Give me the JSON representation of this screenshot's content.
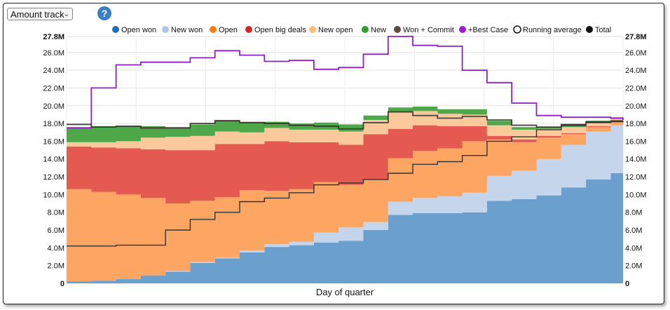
{
  "controls": {
    "metric_select": "Amount track",
    "help_label": "?"
  },
  "colors": {
    "open_won": "#6b9fce",
    "new_won": "#c5d5ec",
    "open": "#fda664",
    "open_big_deals": "#e55a50",
    "new_open": "#fcc99c",
    "new": "#4ea84a",
    "won_commit": "#5b4a45",
    "best_case": "#8e1fc4",
    "running_average": "#333333",
    "total": "#111111",
    "legend_open_won": "#1f6fb2",
    "legend_new_won": "#aec7e8",
    "legend_open": "#ff7f0e",
    "legend_open_big_deals": "#d62728",
    "legend_new_open": "#ffbb78",
    "legend_new": "#2ca02c",
    "legend_won_commit": "#5b4a45",
    "legend_best_case": "#9b1fd0"
  },
  "chart_data": {
    "type": "area",
    "title": "",
    "xlabel": "Day of quarter",
    "ylabel": "",
    "ylim": [
      0,
      27800000
    ],
    "y_tick_labels": [
      "0",
      "2.0M",
      "4.0M",
      "6.0M",
      "8.0M",
      "10.0M",
      "12.0M",
      "14.0M",
      "16.0M",
      "18.0M",
      "20.0M",
      "22.0M",
      "24.0M",
      "26.0M",
      "27.8M"
    ],
    "y_tick_values": [
      0,
      2000000,
      4000000,
      6000000,
      8000000,
      10000000,
      12000000,
      14000000,
      16000000,
      18000000,
      20000000,
      22000000,
      24000000,
      26000000,
      27800000
    ],
    "x": [
      1,
      5,
      9,
      13,
      17,
      21,
      25,
      29,
      33,
      37,
      41,
      45,
      49,
      53,
      57,
      61,
      65,
      69,
      73,
      77,
      81,
      85,
      89,
      91
    ],
    "legend": [
      "Open won",
      "New won",
      "Open",
      "Open big deals",
      "New open",
      "New",
      "Won + Commit",
      "+Best Case",
      "Running average",
      "Total"
    ],
    "stacked_series": [
      {
        "name": "Open won",
        "values": [
          0.2,
          0.3,
          0.5,
          0.9,
          1.3,
          2.3,
          2.8,
          3.5,
          4.1,
          4.3,
          4.6,
          4.8,
          6.0,
          7.7,
          7.9,
          7.9,
          8.0,
          9.3,
          9.5,
          9.9,
          10.8,
          11.7,
          12.4,
          14.0
        ]
      },
      {
        "name": "New won",
        "values": [
          0.0,
          0.0,
          0.0,
          0.0,
          0.1,
          0.1,
          0.1,
          0.2,
          0.3,
          0.4,
          1.1,
          1.5,
          0.9,
          1.5,
          1.7,
          1.9,
          2.2,
          2.8,
          3.2,
          4.1,
          4.8,
          5.4,
          5.4,
          4.0
        ]
      },
      {
        "name": "Open",
        "values": [
          10.4,
          10.0,
          9.5,
          8.7,
          7.6,
          6.9,
          6.8,
          6.8,
          6.0,
          5.9,
          5.7,
          4.8,
          4.8,
          4.9,
          5.3,
          5.4,
          5.8,
          4.1,
          3.2,
          2.4,
          1.2,
          0.5,
          0.4,
          0.2
        ]
      },
      {
        "name": "Open big deals",
        "values": [
          4.8,
          5.0,
          5.2,
          5.5,
          6.0,
          5.7,
          6.0,
          5.2,
          5.6,
          5.3,
          4.5,
          4.5,
          5.1,
          3.3,
          2.9,
          2.5,
          1.7,
          0.4,
          0.3,
          0.2,
          0.1,
          0.1,
          0.1,
          0.1
        ]
      },
      {
        "name": "New open",
        "values": [
          0.5,
          0.6,
          0.8,
          1.3,
          1.5,
          1.6,
          1.4,
          1.3,
          1.5,
          1.4,
          1.4,
          1.5,
          1.6,
          1.9,
          1.6,
          1.4,
          1.3,
          1.2,
          1.1,
          0.8,
          0.7,
          0.5,
          0.3,
          0.2
        ]
      },
      {
        "name": "New",
        "values": [
          1.7,
          1.8,
          1.7,
          1.3,
          1.1,
          1.3,
          1.3,
          1.2,
          0.7,
          0.7,
          0.8,
          0.8,
          0.5,
          0.5,
          0.5,
          0.5,
          0.6,
          0.5,
          0.3,
          0.2,
          0.2,
          0.1,
          0.1,
          0.1
        ]
      }
    ],
    "line_series": [
      {
        "name": "+Best Case",
        "values": [
          17.5,
          22.0,
          24.6,
          24.9,
          24.9,
          25.4,
          26.2,
          25.7,
          25.0,
          25.1,
          24.1,
          24.3,
          25.8,
          27.8,
          26.8,
          26.7,
          24.0,
          22.6,
          20.3,
          18.9,
          18.7,
          18.7,
          18.6,
          18.4
        ]
      },
      {
        "name": "Running average",
        "values": [
          4.2,
          4.2,
          4.3,
          4.3,
          6.0,
          7.2,
          8.0,
          9.2,
          9.6,
          10.2,
          11.1,
          11.3,
          11.7,
          12.4,
          13.4,
          13.7,
          14.4,
          16.0,
          16.5,
          17.3,
          17.9,
          18.1,
          18.2,
          18.3
        ]
      },
      {
        "name": "Total",
        "values": [
          17.9,
          17.6,
          17.7,
          17.5,
          17.5,
          18.0,
          18.3,
          18.1,
          18.0,
          17.8,
          17.7,
          17.4,
          18.1,
          19.3,
          18.9,
          18.6,
          18.8,
          18.4,
          17.8,
          17.6,
          17.8,
          18.2,
          18.3,
          18.3
        ]
      },
      {
        "name": "Won + Commit",
        "values": [
          17.9,
          17.6,
          17.7,
          17.5,
          17.5,
          18.0,
          18.3,
          18.1,
          18.0,
          17.8,
          17.7,
          17.4,
          18.1,
          19.3,
          18.9,
          18.6,
          18.8,
          18.4,
          17.8,
          17.6,
          17.8,
          18.2,
          18.3,
          18.3
        ]
      }
    ],
    "grid": true,
    "legend_position": "top"
  }
}
